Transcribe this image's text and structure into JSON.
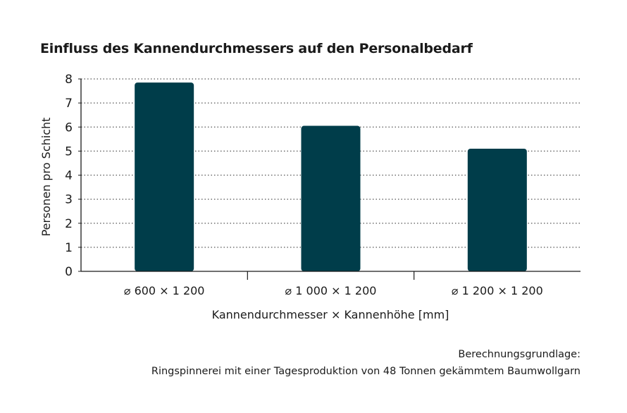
{
  "chart_data": {
    "type": "bar",
    "title": "Einfluss des Kannendurchmessers auf den Personalbedarf",
    "categories": [
      "⌀ 600 × 1 200",
      "⌀ 1 000 × 1 200",
      "⌀ 1 200 × 1 200"
    ],
    "values": [
      7.85,
      6.05,
      5.1
    ],
    "xlabel": "Kannendurchmesser × Kannenhöhe [mm]",
    "ylabel": "Personen pro Schicht",
    "ylim": [
      0,
      8
    ],
    "yticks": [
      "0",
      "1",
      "2",
      "3",
      "4",
      "5",
      "6",
      "7",
      "8"
    ],
    "grid": "horizontal-dotted",
    "bar_color": "#003d4a"
  },
  "footnote": {
    "line1": "Berechnungsgrundlage:",
    "line2": "Ringspinnerei mit einer Tagesproduktion von 48 Tonnen gekämmtem Baumwollgarn"
  }
}
